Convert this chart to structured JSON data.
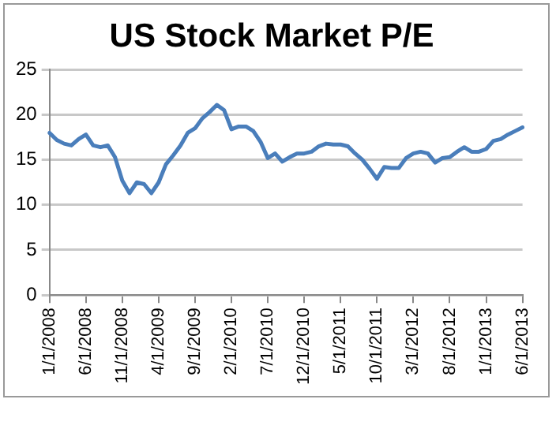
{
  "chart_data": {
    "type": "line",
    "title": "US Stock Market P/E",
    "categories": [
      "1/1/2008",
      null,
      null,
      null,
      null,
      "6/1/2008",
      null,
      null,
      null,
      null,
      "11/1/2008",
      null,
      null,
      null,
      null,
      "4/1/2009",
      null,
      null,
      null,
      null,
      "9/1/2009",
      null,
      null,
      null,
      null,
      "2/1/2010",
      null,
      null,
      null,
      null,
      "7/1/2010",
      null,
      null,
      null,
      null,
      "12/1/2010",
      null,
      null,
      null,
      null,
      "5/1/2011",
      null,
      null,
      null,
      null,
      "10/1/2011",
      null,
      null,
      null,
      null,
      "3/1/2012",
      null,
      null,
      null,
      null,
      "8/1/2012",
      null,
      null,
      null,
      null,
      "1/1/2013",
      null,
      null,
      null,
      null,
      "6/1/2013"
    ],
    "series": [
      {
        "color": "#4a7ebb",
        "values": [
          18.0,
          17.2,
          16.8,
          16.6,
          17.3,
          17.8,
          16.6,
          16.4,
          16.6,
          15.3,
          12.7,
          11.3,
          12.5,
          12.3,
          11.3,
          12.5,
          14.5,
          15.5,
          16.6,
          18.0,
          18.5,
          19.6,
          20.3,
          21.1,
          20.5,
          18.4,
          18.7,
          18.7,
          18.2,
          17.0,
          15.2,
          15.7,
          14.8,
          15.3,
          15.7,
          15.7,
          15.9,
          16.5,
          16.8,
          16.7,
          16.7,
          16.5,
          15.7,
          15.0,
          14.0,
          12.9,
          14.2,
          14.1,
          14.1,
          15.2,
          15.7,
          15.9,
          15.7,
          14.7,
          15.2,
          15.3,
          15.9,
          16.4,
          15.9,
          15.9,
          16.2,
          17.1,
          17.3,
          17.8,
          18.2,
          18.6
        ]
      }
    ],
    "ylim": [
      0,
      25
    ],
    "yticks": [
      0,
      5,
      10,
      15,
      20,
      25
    ],
    "grid": "y",
    "legend": false,
    "marker": "none",
    "line_style": "solid"
  }
}
